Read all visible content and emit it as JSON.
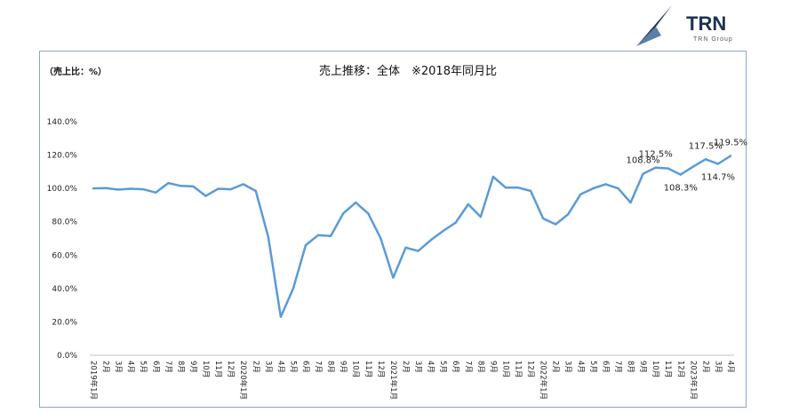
{
  "logo": {
    "brand": "TRN",
    "sub": "TRN Group",
    "color": "#1d3350"
  },
  "chart_data": {
    "type": "line",
    "title": "売上推移：全体　※2018年同月比",
    "unit_label": "（売上比：%）",
    "ylim": [
      0,
      140
    ],
    "yticks": [
      "0.0%",
      "20.0%",
      "40.0%",
      "60.0%",
      "80.0%",
      "100.0%",
      "120.0%",
      "140.0%"
    ],
    "grid": false,
    "line_color": "#5b9bd5",
    "categories": [
      "2019年1月",
      "2月",
      "3月",
      "4月",
      "5月",
      "6月",
      "7月",
      "8月",
      "9月",
      "10月",
      "11月",
      "12月",
      "2020年1月",
      "2月",
      "3月",
      "4月",
      "5月",
      "6月",
      "7月",
      "8月",
      "9月",
      "10月",
      "11月",
      "12月",
      "2021年1月",
      "2月",
      "3月",
      "4月",
      "5月",
      "6月",
      "7月",
      "8月",
      "9月",
      "10月",
      "11月",
      "12月",
      "2022年1月",
      "2月",
      "3月",
      "4月",
      "5月",
      "6月",
      "7月",
      "8月",
      "9月",
      "10月",
      "11月",
      "12月",
      "2023年1月",
      "2月",
      "3月",
      "4月"
    ],
    "values": [
      100.0,
      100.2,
      99.3,
      99.8,
      99.5,
      97.5,
      103.2,
      101.5,
      101.2,
      95.5,
      99.8,
      99.5,
      102.5,
      98.5,
      71.0,
      23.0,
      40.0,
      66.0,
      72.0,
      71.5,
      85.0,
      91.5,
      85.0,
      70.0,
      46.5,
      64.5,
      62.5,
      69.0,
      74.5,
      79.5,
      90.5,
      83.0,
      107.0,
      100.5,
      100.5,
      98.5,
      82.0,
      78.5,
      84.5,
      96.5,
      100.0,
      102.5,
      100.0,
      91.5,
      108.8,
      112.5,
      112.0,
      108.3,
      113.0,
      117.5,
      114.7,
      119.5
    ],
    "data_labels": [
      {
        "index": 44,
        "text": "108.8%",
        "pos": "above"
      },
      {
        "index": 45,
        "text": "112.5%",
        "pos": "above"
      },
      {
        "index": 47,
        "text": "108.3%",
        "pos": "below"
      },
      {
        "index": 49,
        "text": "117.5%",
        "pos": "above"
      },
      {
        "index": 50,
        "text": "114.7%",
        "pos": "below"
      },
      {
        "index": 51,
        "text": "119.5%",
        "pos": "above"
      }
    ]
  }
}
